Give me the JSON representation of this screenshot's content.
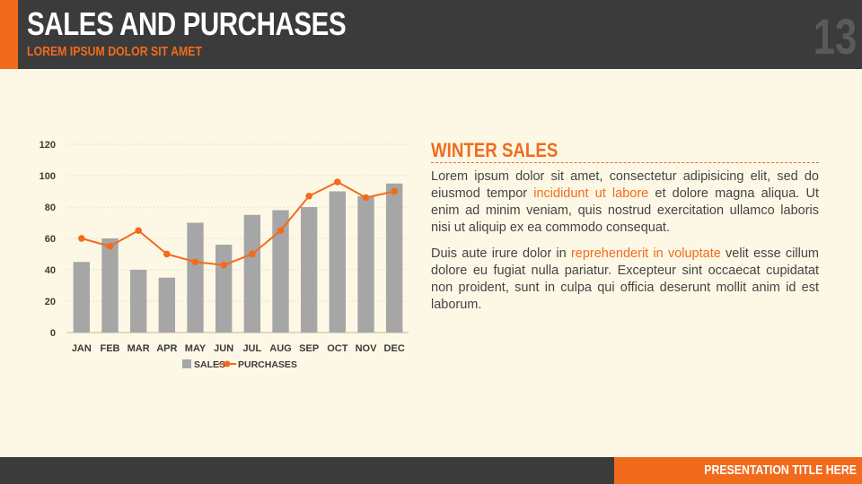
{
  "header": {
    "title": "SALES AND PURCHASES",
    "subtitle": "LOREM IPSUM DOLOR SIT AMET",
    "page_number": "13"
  },
  "footer": {
    "text": "PRESENTATION TITLE HERE"
  },
  "panel": {
    "heading": "WINTER SALES",
    "paragraph1": {
      "before": "Lorem ipsum dolor sit amet, consectetur adipisicing elit, sed do eiusmod tempor ",
      "highlight": "incididunt ut labore",
      "after": " et dolore magna aliqua. Ut enim ad minim veniam, quis nostrud exercitation ullamco laboris nisi ut aliquip ex ea commodo consequat."
    },
    "paragraph2": {
      "before": "Duis aute irure dolor in ",
      "highlight": "reprehenderit in voluptate",
      "after": " velit esse cillum dolore eu fugiat nulla pariatur. Excepteur sint occaecat cupidatat non proident, sunt in culpa qui officia deserunt mollit anim id est laborum."
    }
  },
  "colors": {
    "accent": "#f26b1d",
    "dark": "#3b3b3b",
    "bar": "#a6a6a6",
    "background": "#fdf8e6"
  },
  "chart_data": {
    "type": "bar",
    "categories": [
      "JAN",
      "FEB",
      "MAR",
      "APR",
      "MAY",
      "JUN",
      "JUL",
      "AUG",
      "SEP",
      "OCT",
      "NOV",
      "DEC"
    ],
    "series": [
      {
        "name": "SALES",
        "type": "bar",
        "values": [
          45,
          60,
          40,
          35,
          70,
          56,
          75,
          78,
          80,
          90,
          87,
          95
        ]
      },
      {
        "name": "PURCHASES",
        "type": "line",
        "values": [
          60,
          55,
          65,
          50,
          45,
          43,
          50,
          65,
          87,
          96,
          86,
          90
        ]
      }
    ],
    "ylim": [
      0,
      120
    ],
    "yticks": [
      0,
      20,
      40,
      60,
      80,
      100,
      120
    ],
    "grid": true,
    "legend": "bottom"
  }
}
